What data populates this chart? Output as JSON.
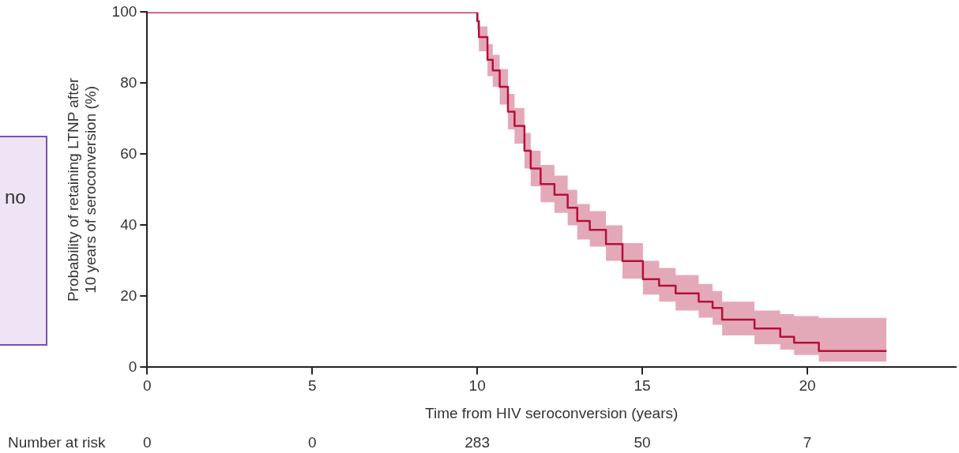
{
  "chart_data": {
    "type": "step",
    "xlabel": "Time from HIV seroconversion (years)",
    "ylabel": "Probability of retaining LTNP after\n10 years of seroconversion (%)",
    "xlim": [
      0,
      24.5
    ],
    "xticks": [
      0,
      5,
      10,
      15,
      20
    ],
    "ylim": [
      0,
      100
    ],
    "yticks": [
      0,
      20,
      40,
      60,
      80,
      100
    ],
    "grid": false,
    "legend": false,
    "marker": "none",
    "line_style": "solid",
    "series": [
      {
        "color": "#b5103a",
        "x": [
          0,
          10,
          10.05,
          10.31,
          10.47,
          10.68,
          10.93,
          11.13,
          11.43,
          11.62,
          11.92,
          12.34,
          12.74,
          13.03,
          13.41,
          13.9,
          14.4,
          15.02,
          15.51,
          16.01,
          16.71,
          17.13,
          17.42,
          18.4,
          19.18,
          19.6,
          20.35,
          21.88,
          22.4
        ],
        "values": [
          100,
          100,
          97.5,
          93,
          86.6,
          83.6,
          79,
          72,
          68,
          61,
          56,
          51.6,
          48.6,
          44.9,
          41.2,
          38.7,
          34.7,
          29.9,
          24.8,
          23,
          20.8,
          18.5,
          16.7,
          13.4,
          10.9,
          8.6,
          6.9,
          4.6,
          4.6
        ],
        "lower": [
          100,
          100,
          95,
          89,
          82,
          79,
          74,
          67,
          63,
          56,
          51,
          46.5,
          43.5,
          40,
          36,
          34,
          30,
          25,
          20.5,
          18.5,
          16,
          14,
          12,
          9,
          6.5,
          5,
          3.5,
          1.6,
          1.6
        ],
        "upper": [
          100,
          100,
          99.5,
          96,
          91,
          88,
          84,
          77,
          73,
          66,
          61,
          57,
          54,
          50,
          46,
          44,
          40,
          35,
          30,
          28,
          26,
          23.5,
          21.5,
          18.5,
          16,
          15,
          14.4,
          13.9,
          13.9
        ]
      }
    ],
    "annotations": [
      "Number at risk",
      "no",
      "0",
      "0",
      "283",
      "50",
      "7"
    ]
  }
}
